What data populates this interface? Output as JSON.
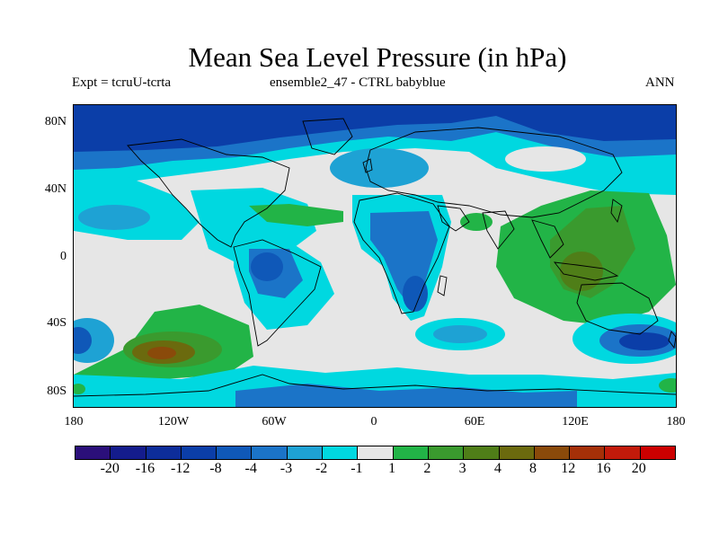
{
  "header": {
    "title": "Mean Sea Level Pressure (in hPa)",
    "left": "Expt = tcruU-tcrta",
    "center": "ensemble2_47 - CTRL babyblue",
    "right": "ANN"
  },
  "axes": {
    "lat_labels": [
      "80N",
      "40N",
      "0",
      "40S",
      "80S"
    ],
    "lon_labels": [
      "180",
      "120W",
      "60W",
      "0",
      "60E",
      "120E",
      "180"
    ]
  },
  "colorbar": {
    "labels": [
      "-20",
      "-16",
      "-12",
      "-8",
      "-4",
      "-3",
      "-2",
      "-1",
      "1",
      "2",
      "3",
      "4",
      "8",
      "12",
      "16",
      "20"
    ],
    "colors": [
      "#2b0f7a",
      "#141c8c",
      "#0d2d9a",
      "#0b3ea8",
      "#0f58b8",
      "#1b74c8",
      "#1ea2d4",
      "#00d8e0",
      "#e6e6e6",
      "#22b447",
      "#3a9a2e",
      "#4f7e18",
      "#6b6a0e",
      "#8a4a0a",
      "#a53008",
      "#c21a0a",
      "#cc0000"
    ]
  },
  "chart_data": {
    "type": "map",
    "title": "Mean Sea Level Pressure (in hPa)",
    "units": "hPa",
    "projection": "cylindrical equidistant",
    "lon_range": [
      -180,
      180
    ],
    "lat_range": [
      -90,
      90
    ],
    "contour_levels": [
      -20,
      -16,
      -12,
      -8,
      -4,
      -3,
      -2,
      -1,
      1,
      2,
      3,
      4,
      8,
      12,
      16,
      20
    ],
    "features": [
      {
        "region": "Arctic / high northern latitudes",
        "sign": "negative",
        "approx_range": "-8 to -4"
      },
      {
        "region": "South Pacific near 120W 55S",
        "sign": "positive",
        "approx_range": "4 to 8"
      },
      {
        "region": "South America interior",
        "sign": "negative",
        "approx_range": "-4 to -3"
      },
      {
        "region": "Southern Africa",
        "sign": "negative",
        "approx_range": "-4 to -3"
      },
      {
        "region": "Maritime Continent / Western Pacific",
        "sign": "positive",
        "approx_range": "2 to 3"
      },
      {
        "region": "Southern Ocean south of Australia",
        "sign": "negative",
        "approx_range": "-8 to -4"
      },
      {
        "region": "Antarctic coast",
        "sign": "negative",
        "approx_range": "-4 to -2"
      }
    ]
  }
}
